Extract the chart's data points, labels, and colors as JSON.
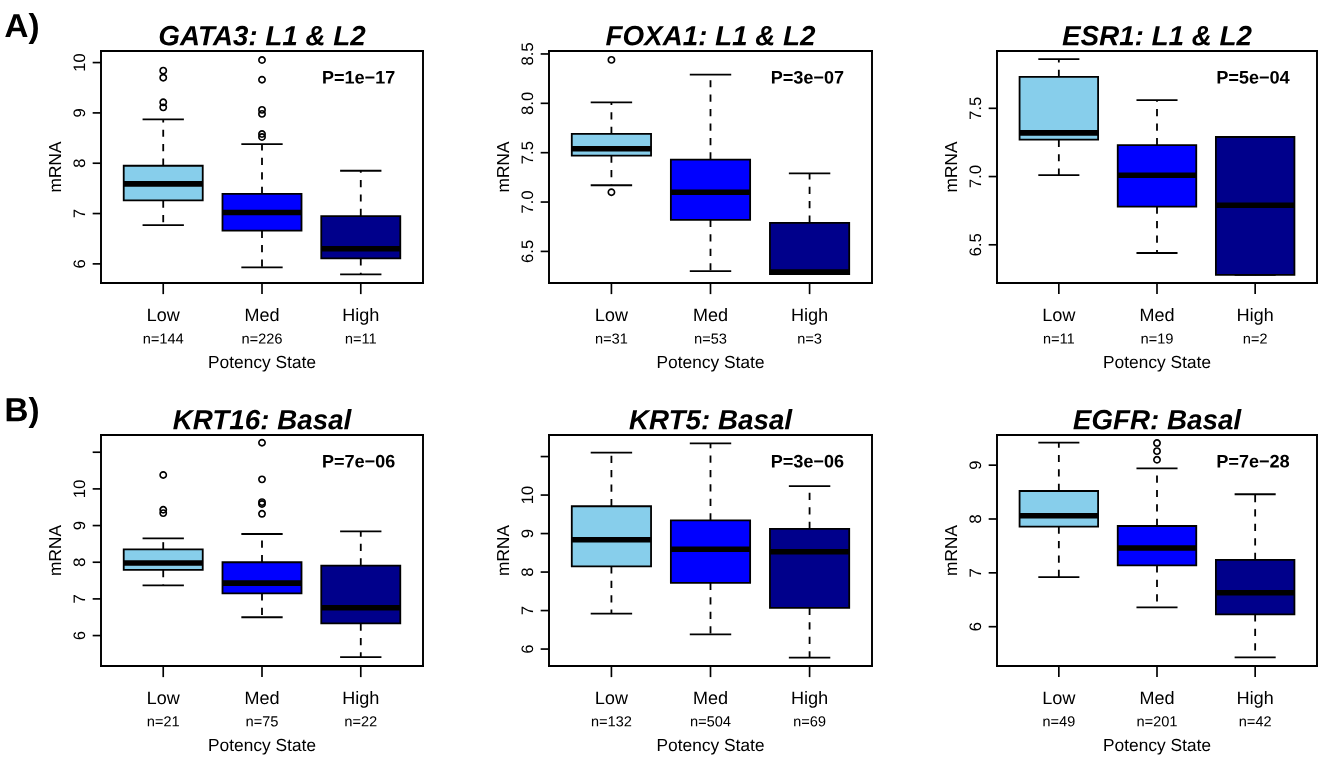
{
  "chart_data": [
    {
      "type": "box",
      "title": "GATA3: L1 & L2",
      "xlabel": "Potency State",
      "ylabel": "mRNA",
      "categories": [
        "Low\nn=144",
        "Med\nn=226",
        "High\nn=11"
      ],
      "colors": [
        "#87ceeb",
        "#0000ff",
        "#00008b"
      ],
      "ylim": [
        5.62,
        10.23
      ],
      "yticks": [
        6,
        7,
        8,
        9,
        10
      ],
      "annotations": [
        "A)",
        "P=1e−17"
      ],
      "boxes": [
        {
          "low": 6.77,
          "q1": 7.26,
          "median": 7.59,
          "q3": 7.95,
          "high": 8.87,
          "outliers": [
            9.84,
            9.7,
            9.21,
            9.11
          ]
        },
        {
          "low": 5.93,
          "q1": 6.66,
          "median": 7.02,
          "q3": 7.39,
          "high": 8.38,
          "outliers": [
            10.05,
            9.66,
            9.06,
            8.98,
            8.58,
            8.52
          ]
        },
        {
          "low": 5.79,
          "q1": 6.11,
          "median": 6.3,
          "q3": 6.95,
          "high": 7.85
        }
      ]
    },
    {
      "type": "box",
      "title": "FOXA1: L1 & L2",
      "xlabel": "Potency State",
      "ylabel": "mRNA",
      "categories": [
        "Low\nn=31",
        "Med\nn=53",
        "High\nn=3"
      ],
      "colors": [
        "#87ceeb",
        "#0000ff",
        "#00008b"
      ],
      "ylim": [
        6.18,
        8.53
      ],
      "yticks": [
        6.5,
        {
          "value": 7,
          "label": "7.0"
        },
        7.5,
        {
          "value": 8,
          "label": "8.0"
        },
        8.5
      ],
      "annotations": [
        "P=3e−07"
      ],
      "boxes": [
        {
          "low": 7.17,
          "q1": 7.47,
          "median": 7.54,
          "q3": 7.69,
          "high": 8.01,
          "outliers": [
            8.44,
            7.1
          ]
        },
        {
          "low": 6.3,
          "q1": 6.82,
          "median": 7.1,
          "q3": 7.43,
          "high": 8.29
        },
        {
          "low": 6.27,
          "q1": 6.27,
          "median": 6.29,
          "q3": 6.79,
          "high": 7.29
        }
      ]
    },
    {
      "type": "box",
      "title": "ESR1: L1 & L2",
      "xlabel": "Potency State",
      "ylabel": "mRNA",
      "categories": [
        "Low\nn=11",
        "Med\nn=19",
        "High\nn=2"
      ],
      "colors": [
        "#87ceeb",
        "#0000ff",
        "#00008b"
      ],
      "ylim": [
        6.22,
        7.92
      ],
      "yticks": [
        6.5,
        {
          "value": 7,
          "label": "7.0"
        },
        7.5
      ],
      "annotations": [
        "P=5e−04"
      ],
      "boxes": [
        {
          "low": 7.01,
          "q1": 7.27,
          "median": 7.32,
          "q3": 7.73,
          "high": 7.86
        },
        {
          "low": 6.44,
          "q1": 6.78,
          "median": 7.01,
          "q3": 7.23,
          "high": 7.56
        },
        {
          "low": 6.28,
          "q1": 6.28,
          "median": 6.79,
          "q3": 7.29,
          "high": 7.29
        }
      ]
    },
    {
      "type": "box",
      "title": "KRT16: Basal",
      "xlabel": "Potency State",
      "ylabel": "mRNA",
      "categories": [
        "Low\nn=21",
        "Med\nn=75",
        "High\nn=22"
      ],
      "colors": [
        "#87ceeb",
        "#0000ff",
        "#00008b"
      ],
      "ylim": [
        5.17,
        11.47
      ],
      "yticks": [
        6,
        7,
        8,
        9,
        10,
        {
          "value": 11,
          "label": null
        }
      ],
      "annotations": [
        "B)",
        "P=7e−06"
      ],
      "boxes": [
        {
          "low": 7.37,
          "q1": 7.79,
          "median": 7.98,
          "q3": 8.35,
          "high": 8.65,
          "outliers": [
            10.38,
            9.43,
            9.34
          ]
        },
        {
          "low": 6.5,
          "q1": 7.15,
          "median": 7.43,
          "q3": 8.0,
          "high": 8.77,
          "outliers": [
            11.26,
            10.26,
            9.64,
            9.59,
            9.32
          ]
        },
        {
          "low": 5.41,
          "q1": 6.33,
          "median": 6.76,
          "q3": 7.91,
          "high": 8.84
        }
      ]
    },
    {
      "type": "box",
      "title": "KRT5: Basal",
      "xlabel": "Potency State",
      "ylabel": "mRNA",
      "categories": [
        "Low\nn=132",
        "Med\nn=504",
        "High\nn=69"
      ],
      "colors": [
        "#87ceeb",
        "#0000ff",
        "#00008b"
      ],
      "ylim": [
        5.56,
        11.56
      ],
      "yticks": [
        6,
        7,
        8,
        9,
        10,
        {
          "value": 11,
          "label": null
        }
      ],
      "annotations": [
        "P=3e−06"
      ],
      "boxes": [
        {
          "low": 6.92,
          "q1": 8.15,
          "median": 8.84,
          "q3": 9.71,
          "high": 11.1
        },
        {
          "low": 6.38,
          "q1": 7.72,
          "median": 8.59,
          "q3": 9.34,
          "high": 11.34
        },
        {
          "low": 5.78,
          "q1": 7.07,
          "median": 8.53,
          "q3": 9.12,
          "high": 10.23
        }
      ]
    },
    {
      "type": "box",
      "title": "EGFR: Basal",
      "xlabel": "Potency State",
      "ylabel": "mRNA",
      "categories": [
        "Low\nn=49",
        "Med\nn=201",
        "High\nn=42"
      ],
      "colors": [
        "#87ceeb",
        "#0000ff",
        "#00008b"
      ],
      "ylim": [
        5.27,
        9.56
      ],
      "yticks": [
        6,
        7,
        8,
        9
      ],
      "annotations": [
        "P=7e−28"
      ],
      "boxes": [
        {
          "low": 6.92,
          "q1": 7.86,
          "median": 8.06,
          "q3": 8.52,
          "high": 9.42
        },
        {
          "low": 6.36,
          "q1": 7.14,
          "median": 7.46,
          "q3": 7.87,
          "high": 8.94,
          "outliers": [
            9.41,
            9.26,
            9.1
          ]
        },
        {
          "low": 5.43,
          "q1": 6.23,
          "median": 6.63,
          "q3": 7.24,
          "high": 8.46
        }
      ]
    }
  ]
}
